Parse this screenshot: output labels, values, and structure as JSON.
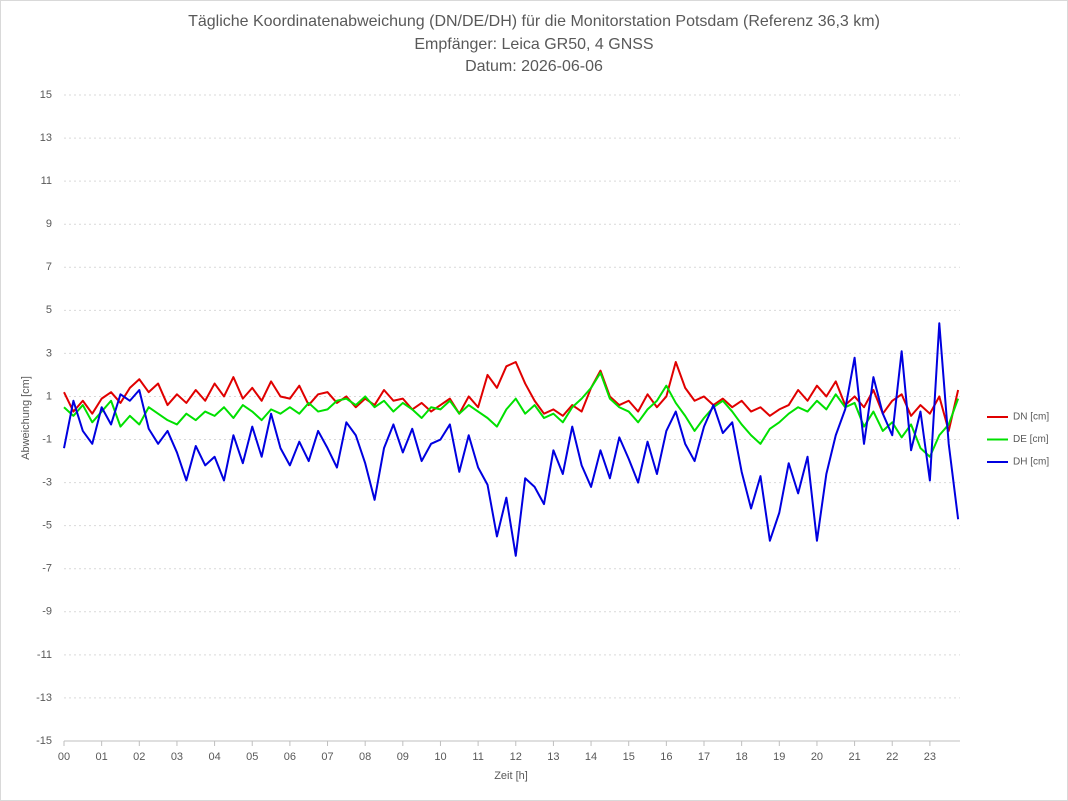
{
  "chart_data": {
    "type": "line",
    "title": "Tägliche Koordinatenabweichung (DN/DE/DH) für die Monitorstation Potsdam (Referenz 36,3 km)",
    "subtitle": "Empfänger: Leica GR50, 4 GNSS",
    "date_label": "Datum: 2026-06-06",
    "x_label": "Zeit [h]",
    "y_label": "Abweichung [cm]",
    "x": [
      0,
      0.25,
      0.5,
      0.75,
      1,
      1.25,
      1.5,
      1.75,
      2,
      2.25,
      2.5,
      2.75,
      3,
      3.25,
      3.5,
      3.75,
      4,
      4.25,
      4.5,
      4.75,
      5,
      5.25,
      5.5,
      5.75,
      6,
      6.25,
      6.5,
      6.75,
      7,
      7.25,
      7.5,
      7.75,
      8,
      8.25,
      8.5,
      8.75,
      9,
      9.25,
      9.5,
      9.75,
      10,
      10.25,
      10.5,
      10.75,
      11,
      11.25,
      11.5,
      11.75,
      12,
      12.25,
      12.5,
      12.75,
      13,
      13.25,
      13.5,
      13.75,
      14,
      14.25,
      14.5,
      14.75,
      15,
      15.25,
      15.5,
      15.75,
      16,
      16.25,
      16.5,
      16.75,
      17,
      17.25,
      17.5,
      17.75,
      18,
      18.25,
      18.5,
      18.75,
      19,
      19.25,
      19.5,
      19.75,
      20,
      20.25,
      20.5,
      20.75,
      21,
      21.25,
      21.5,
      21.75,
      22,
      22.25,
      22.5,
      22.75,
      23,
      23.25,
      23.5,
      23.75
    ],
    "xlim": [
      0,
      23.8
    ],
    "xticks": [
      {
        "value": 0,
        "label": "00"
      },
      {
        "value": 1,
        "label": "01"
      },
      {
        "value": 2,
        "label": "02"
      },
      {
        "value": 3,
        "label": "03"
      },
      {
        "value": 4,
        "label": "04"
      },
      {
        "value": 5,
        "label": "05"
      },
      {
        "value": 6,
        "label": "06"
      },
      {
        "value": 7,
        "label": "07"
      },
      {
        "value": 8,
        "label": "08"
      },
      {
        "value": 9,
        "label": "09"
      },
      10,
      11,
      12,
      13,
      14,
      15,
      16,
      17,
      18,
      19,
      20,
      21,
      22,
      23
    ],
    "ylim": [
      -15,
      15
    ],
    "yticks": [
      -15,
      -13,
      -11,
      -9,
      -7,
      -5,
      -3,
      -1,
      1,
      3,
      5,
      7,
      9,
      11,
      13,
      15
    ],
    "grid": true,
    "legend": "right",
    "series": [
      {
        "name": "DN [cm]",
        "color": "#e00000",
        "values": [
          1.2,
          0.3,
          0.8,
          0.2,
          0.9,
          1.2,
          0.7,
          1.4,
          1.8,
          1.2,
          1.6,
          0.6,
          1.1,
          0.7,
          1.3,
          0.8,
          1.6,
          1.0,
          1.9,
          0.9,
          1.4,
          0.8,
          1.7,
          1.0,
          0.9,
          1.5,
          0.6,
          1.1,
          1.2,
          0.7,
          1.0,
          0.5,
          0.9,
          0.6,
          1.3,
          0.8,
          0.9,
          0.4,
          0.7,
          0.3,
          0.6,
          0.9,
          0.2,
          1.0,
          0.5,
          2.0,
          1.4,
          2.4,
          2.6,
          1.6,
          0.8,
          0.2,
          0.4,
          0.1,
          0.6,
          0.3,
          1.4,
          2.2,
          1.0,
          0.6,
          0.8,
          0.3,
          1.1,
          0.5,
          1.0,
          2.6,
          1.4,
          0.8,
          1.0,
          0.6,
          0.9,
          0.5,
          0.8,
          0.3,
          0.5,
          0.1,
          0.4,
          0.6,
          1.3,
          0.8,
          1.5,
          1.0,
          1.7,
          0.6,
          1.0,
          0.5,
          1.3,
          0.2,
          0.8,
          1.1,
          0.1,
          0.6,
          0.2,
          1.0,
          -0.6,
          1.3
        ]
      },
      {
        "name": "DE [cm]",
        "color": "#00e000",
        "values": [
          0.5,
          0.1,
          0.6,
          -0.2,
          0.3,
          0.8,
          -0.4,
          0.1,
          -0.3,
          0.5,
          0.2,
          -0.1,
          -0.3,
          0.2,
          -0.1,
          0.3,
          0.1,
          0.5,
          0.0,
          0.6,
          0.3,
          -0.1,
          0.4,
          0.2,
          0.5,
          0.2,
          0.7,
          0.3,
          0.4,
          0.8,
          0.9,
          0.6,
          1.0,
          0.5,
          0.8,
          0.3,
          0.7,
          0.4,
          0.0,
          0.5,
          0.4,
          0.8,
          0.2,
          0.6,
          0.3,
          0.0,
          -0.4,
          0.4,
          0.9,
          0.2,
          0.6,
          0.0,
          0.2,
          -0.2,
          0.5,
          0.9,
          1.4,
          2.1,
          0.9,
          0.5,
          0.3,
          -0.2,
          0.4,
          0.8,
          1.5,
          0.7,
          0.1,
          -0.6,
          0.0,
          0.5,
          0.8,
          0.3,
          -0.3,
          -0.8,
          -1.2,
          -0.5,
          -0.2,
          0.2,
          0.5,
          0.3,
          0.8,
          0.4,
          1.1,
          0.5,
          0.7,
          -0.4,
          0.3,
          -0.6,
          -0.2,
          -0.9,
          -0.3,
          -1.4,
          -1.8,
          -0.8,
          -0.3,
          0.9
        ]
      },
      {
        "name": "DH [cm]",
        "color": "#0000e0",
        "values": [
          -1.4,
          0.8,
          -0.6,
          -1.2,
          0.5,
          -0.3,
          1.1,
          0.8,
          1.3,
          -0.5,
          -1.2,
          -0.6,
          -1.6,
          -2.9,
          -1.3,
          -2.2,
          -1.8,
          -2.9,
          -0.8,
          -2.1,
          -0.4,
          -1.8,
          0.2,
          -1.4,
          -2.2,
          -1.1,
          -2.0,
          -0.6,
          -1.4,
          -2.3,
          -0.2,
          -0.8,
          -2.1,
          -3.8,
          -1.4,
          -0.3,
          -1.6,
          -0.5,
          -2.0,
          -1.2,
          -1.0,
          -0.3,
          -2.5,
          -0.8,
          -2.3,
          -3.1,
          -5.5,
          -3.7,
          -6.4,
          -2.8,
          -3.2,
          -4.0,
          -1.5,
          -2.6,
          -0.4,
          -2.2,
          -3.2,
          -1.5,
          -2.8,
          -0.9,
          -1.9,
          -3.0,
          -1.1,
          -2.6,
          -0.6,
          0.3,
          -1.2,
          -2.0,
          -0.4,
          0.6,
          -0.7,
          -0.2,
          -2.5,
          -4.2,
          -2.7,
          -5.7,
          -4.4,
          -2.1,
          -3.5,
          -1.8,
          -5.7,
          -2.6,
          -0.8,
          0.4,
          2.8,
          -1.2,
          1.9,
          0.2,
          -0.8,
          3.1,
          -1.5,
          0.3,
          -2.9,
          4.4,
          -1.2,
          -4.7
        ]
      }
    ]
  }
}
